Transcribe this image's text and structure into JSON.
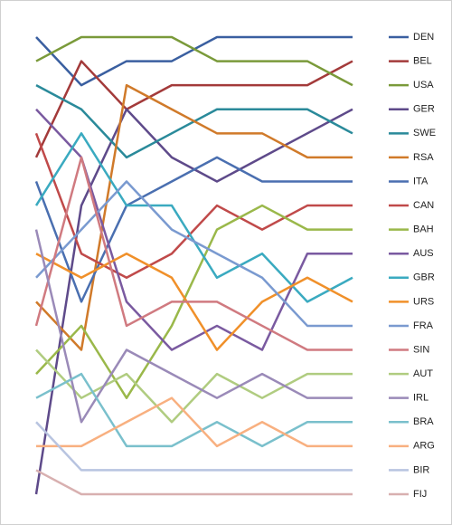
{
  "chart_data": {
    "type": "bump",
    "inverted": true,
    "ylim": [
      1,
      20
    ],
    "series": [
      {
        "name": "DEN",
        "color": "#3a5fa0",
        "values": [
          1,
          3,
          2,
          2,
          1,
          1,
          1,
          1
        ]
      },
      {
        "name": "BEL",
        "color": "#a33a3a",
        "values": [
          6,
          2,
          4,
          3,
          3,
          3,
          3,
          2
        ]
      },
      {
        "name": "USA",
        "color": "#7a9a3a",
        "values": [
          2,
          1,
          1,
          1,
          2,
          2,
          2,
          3
        ]
      },
      {
        "name": "GER",
        "color": "#5e4a8a",
        "values": [
          20,
          8,
          4,
          6,
          7,
          6,
          5,
          4
        ]
      },
      {
        "name": "SWE",
        "color": "#2a8a9a",
        "values": [
          3,
          4,
          6,
          5,
          4,
          4,
          4,
          5
        ]
      },
      {
        "name": "RSA",
        "color": "#d07a2a",
        "values": [
          12,
          14,
          3,
          4,
          5,
          5,
          6,
          6
        ]
      },
      {
        "name": "ITA",
        "color": "#4a6fb0",
        "values": [
          7,
          12,
          8,
          7,
          6,
          7,
          7,
          7
        ]
      },
      {
        "name": "CAN",
        "color": "#c04a4a",
        "values": [
          5,
          10,
          11,
          10,
          8,
          9,
          8,
          8
        ]
      },
      {
        "name": "BAH",
        "color": "#9ab84a",
        "values": [
          15,
          13,
          16,
          13,
          9,
          8,
          9,
          9
        ]
      },
      {
        "name": "AUS",
        "color": "#7a5aa0",
        "values": [
          4,
          6,
          12,
          14,
          13,
          14,
          10,
          10
        ]
      },
      {
        "name": "GBR",
        "color": "#3aaac0",
        "values": [
          8,
          5,
          8,
          8,
          11,
          10,
          12,
          11
        ]
      },
      {
        "name": "URS",
        "color": "#f0902a",
        "values": [
          10,
          11,
          10,
          11,
          14,
          12,
          11,
          12
        ]
      },
      {
        "name": "FRA",
        "color": "#7a9ad0",
        "values": [
          11,
          9,
          7,
          9,
          10,
          11,
          13,
          13
        ]
      },
      {
        "name": "SIN",
        "color": "#d07a80",
        "values": [
          13,
          6,
          13,
          12,
          12,
          13,
          14,
          14
        ]
      },
      {
        "name": "AUT",
        "color": "#b0cc80",
        "values": [
          14,
          16,
          15,
          17,
          15,
          16,
          15,
          15
        ]
      },
      {
        "name": "IRL",
        "color": "#9a8ab8",
        "values": [
          9,
          17,
          14,
          15,
          16,
          15,
          16,
          16
        ]
      },
      {
        "name": "BRA",
        "color": "#7ac0cc",
        "values": [
          16,
          15,
          18,
          18,
          17,
          18,
          17,
          17
        ]
      },
      {
        "name": "ARG",
        "color": "#f8b080",
        "values": [
          18,
          18,
          17,
          16,
          18,
          17,
          18,
          18
        ]
      },
      {
        "name": "BIR",
        "color": "#b8c4e0",
        "values": [
          17,
          19,
          19,
          19,
          19,
          19,
          19,
          19
        ]
      },
      {
        "name": "FIJ",
        "color": "#d8b0b0",
        "values": [
          19,
          20,
          20,
          20,
          20,
          20,
          20,
          20
        ]
      }
    ]
  }
}
